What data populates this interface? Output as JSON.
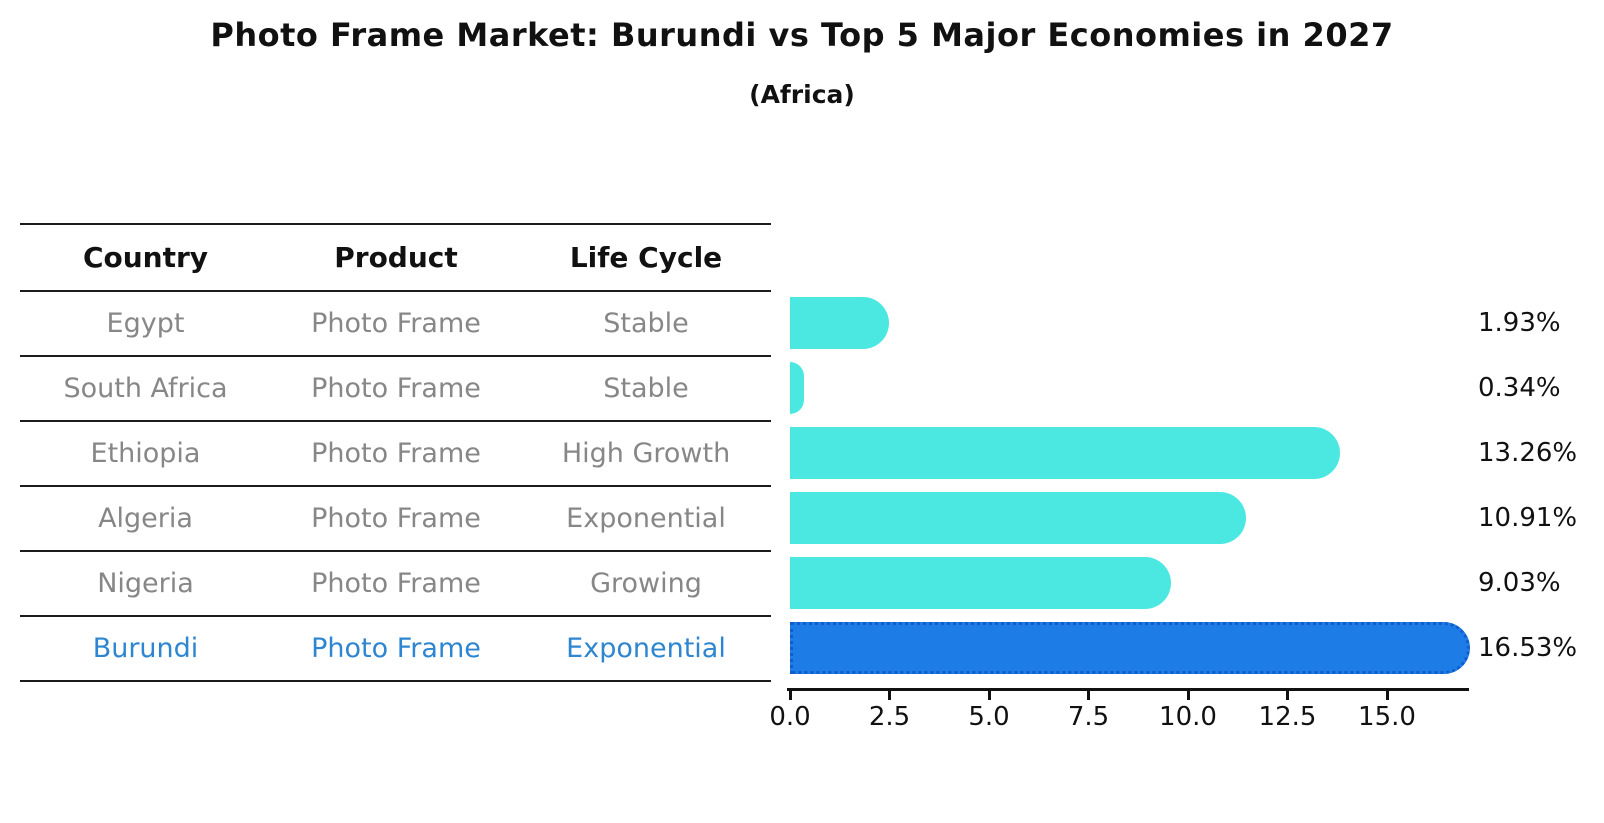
{
  "title": "Photo Frame Market: Burundi vs Top 5 Major Economies in 2027",
  "subtitle": "(Africa)",
  "table": {
    "headers": [
      "Country",
      "Product",
      "Life Cycle"
    ],
    "rows": [
      {
        "country": "Egypt",
        "product": "Photo Frame",
        "life_cycle": "Stable",
        "highlight": false
      },
      {
        "country": "South Africa",
        "product": "Photo Frame",
        "life_cycle": "Stable",
        "highlight": false
      },
      {
        "country": "Ethiopia",
        "product": "Photo Frame",
        "life_cycle": "High Growth",
        "highlight": false
      },
      {
        "country": "Algeria",
        "product": "Photo Frame",
        "life_cycle": "Exponential",
        "highlight": false
      },
      {
        "country": "Nigeria",
        "product": "Photo Frame",
        "life_cycle": "Growing",
        "highlight": false
      },
      {
        "country": "Burundi",
        "product": "Photo Frame",
        "life_cycle": "Exponential",
        "highlight": true
      }
    ]
  },
  "chart_data": {
    "type": "bar",
    "orientation": "horizontal",
    "title": "Photo Frame Market: Burundi vs Top 5 Major Economies in 2027 (Africa)",
    "categories": [
      "Egypt",
      "South Africa",
      "Ethiopia",
      "Algeria",
      "Nigeria",
      "Burundi"
    ],
    "values": [
      1.93,
      0.34,
      13.26,
      10.91,
      9.03,
      16.53
    ],
    "value_labels": [
      "1.93%",
      "0.34%",
      "13.26%",
      "10.91%",
      "9.03%",
      "16.53%"
    ],
    "x_ticks": [
      "0.0",
      "2.5",
      "5.0",
      "7.5",
      "10.0",
      "12.5",
      "15.0"
    ],
    "x_tick_values": [
      0,
      2.5,
      5,
      7.5,
      10,
      12.5,
      15
    ],
    "xlim": [
      0,
      17.0
    ],
    "grid": false,
    "legend": "none",
    "highlight_index": 5,
    "colors": {
      "bar": "#4BE8E2",
      "highlight_bar": "#1E7CE6",
      "highlight_bar_edge": "#0F5ECC",
      "highlight_text": "#2E86D1",
      "table_text": "#878787",
      "axis_text": "#111111",
      "line": "#1c1c1c"
    }
  }
}
